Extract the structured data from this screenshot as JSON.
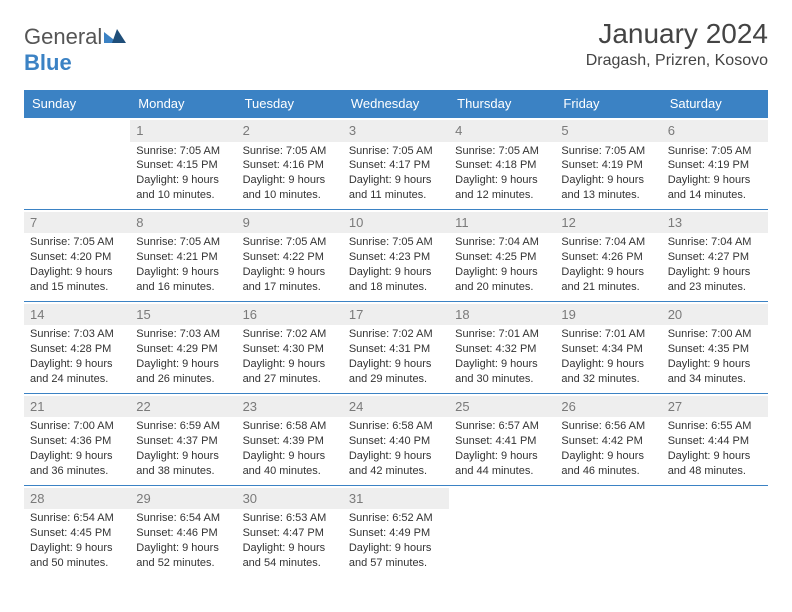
{
  "logo": {
    "part1": "General",
    "part2": "Blue"
  },
  "title": "January 2024",
  "location": "Dragash, Prizren, Kosovo",
  "colors": {
    "header_bg": "#3b82c4",
    "header_text": "#ffffff",
    "daynum_bg": "#eeeeee",
    "daynum_text": "#7a7a7a",
    "body_text": "#333333",
    "rule": "#3b82c4"
  },
  "weekdays": [
    "Sunday",
    "Monday",
    "Tuesday",
    "Wednesday",
    "Thursday",
    "Friday",
    "Saturday"
  ],
  "firstDayIndex": 1,
  "daysInMonth": 31,
  "days": {
    "1": {
      "sunrise": "7:05 AM",
      "sunset": "4:15 PM",
      "daylight": "9 hours and 10 minutes."
    },
    "2": {
      "sunrise": "7:05 AM",
      "sunset": "4:16 PM",
      "daylight": "9 hours and 10 minutes."
    },
    "3": {
      "sunrise": "7:05 AM",
      "sunset": "4:17 PM",
      "daylight": "9 hours and 11 minutes."
    },
    "4": {
      "sunrise": "7:05 AM",
      "sunset": "4:18 PM",
      "daylight": "9 hours and 12 minutes."
    },
    "5": {
      "sunrise": "7:05 AM",
      "sunset": "4:19 PM",
      "daylight": "9 hours and 13 minutes."
    },
    "6": {
      "sunrise": "7:05 AM",
      "sunset": "4:19 PM",
      "daylight": "9 hours and 14 minutes."
    },
    "7": {
      "sunrise": "7:05 AM",
      "sunset": "4:20 PM",
      "daylight": "9 hours and 15 minutes."
    },
    "8": {
      "sunrise": "7:05 AM",
      "sunset": "4:21 PM",
      "daylight": "9 hours and 16 minutes."
    },
    "9": {
      "sunrise": "7:05 AM",
      "sunset": "4:22 PM",
      "daylight": "9 hours and 17 minutes."
    },
    "10": {
      "sunrise": "7:05 AM",
      "sunset": "4:23 PM",
      "daylight": "9 hours and 18 minutes."
    },
    "11": {
      "sunrise": "7:04 AM",
      "sunset": "4:25 PM",
      "daylight": "9 hours and 20 minutes."
    },
    "12": {
      "sunrise": "7:04 AM",
      "sunset": "4:26 PM",
      "daylight": "9 hours and 21 minutes."
    },
    "13": {
      "sunrise": "7:04 AM",
      "sunset": "4:27 PM",
      "daylight": "9 hours and 23 minutes."
    },
    "14": {
      "sunrise": "7:03 AM",
      "sunset": "4:28 PM",
      "daylight": "9 hours and 24 minutes."
    },
    "15": {
      "sunrise": "7:03 AM",
      "sunset": "4:29 PM",
      "daylight": "9 hours and 26 minutes."
    },
    "16": {
      "sunrise": "7:02 AM",
      "sunset": "4:30 PM",
      "daylight": "9 hours and 27 minutes."
    },
    "17": {
      "sunrise": "7:02 AM",
      "sunset": "4:31 PM",
      "daylight": "9 hours and 29 minutes."
    },
    "18": {
      "sunrise": "7:01 AM",
      "sunset": "4:32 PM",
      "daylight": "9 hours and 30 minutes."
    },
    "19": {
      "sunrise": "7:01 AM",
      "sunset": "4:34 PM",
      "daylight": "9 hours and 32 minutes."
    },
    "20": {
      "sunrise": "7:00 AM",
      "sunset": "4:35 PM",
      "daylight": "9 hours and 34 minutes."
    },
    "21": {
      "sunrise": "7:00 AM",
      "sunset": "4:36 PM",
      "daylight": "9 hours and 36 minutes."
    },
    "22": {
      "sunrise": "6:59 AM",
      "sunset": "4:37 PM",
      "daylight": "9 hours and 38 minutes."
    },
    "23": {
      "sunrise": "6:58 AM",
      "sunset": "4:39 PM",
      "daylight": "9 hours and 40 minutes."
    },
    "24": {
      "sunrise": "6:58 AM",
      "sunset": "4:40 PM",
      "daylight": "9 hours and 42 minutes."
    },
    "25": {
      "sunrise": "6:57 AM",
      "sunset": "4:41 PM",
      "daylight": "9 hours and 44 minutes."
    },
    "26": {
      "sunrise": "6:56 AM",
      "sunset": "4:42 PM",
      "daylight": "9 hours and 46 minutes."
    },
    "27": {
      "sunrise": "6:55 AM",
      "sunset": "4:44 PM",
      "daylight": "9 hours and 48 minutes."
    },
    "28": {
      "sunrise": "6:54 AM",
      "sunset": "4:45 PM",
      "daylight": "9 hours and 50 minutes."
    },
    "29": {
      "sunrise": "6:54 AM",
      "sunset": "4:46 PM",
      "daylight": "9 hours and 52 minutes."
    },
    "30": {
      "sunrise": "6:53 AM",
      "sunset": "4:47 PM",
      "daylight": "9 hours and 54 minutes."
    },
    "31": {
      "sunrise": "6:52 AM",
      "sunset": "4:49 PM",
      "daylight": "9 hours and 57 minutes."
    }
  },
  "labels": {
    "sunrise": "Sunrise: ",
    "sunset": "Sunset: ",
    "daylight": "Daylight: "
  }
}
